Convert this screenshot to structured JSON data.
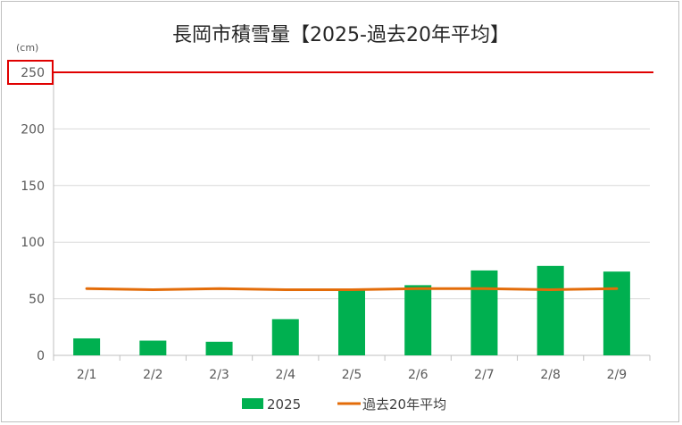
{
  "chart_data": {
    "type": "bar",
    "title": "長岡市積雪量【2025-過去20年平均】",
    "ylabel": "(cm)",
    "xlabel": "",
    "categories": [
      "2/1",
      "2/2",
      "2/3",
      "2/4",
      "2/5",
      "2/6",
      "2/7",
      "2/8",
      "2/9"
    ],
    "ylim": [
      0,
      250
    ],
    "yticks": [
      "0",
      "50",
      "100",
      "150",
      "200",
      "250"
    ],
    "grid": true,
    "legend_position": "bottom",
    "highlighted_tick": "250",
    "series": [
      {
        "name": "2025",
        "type": "bar",
        "color": "#00b050",
        "values": [
          15,
          13,
          12,
          32,
          58,
          62,
          75,
          79,
          74
        ]
      },
      {
        "name": "過去20年平均",
        "type": "line",
        "color": "#e36c09",
        "values": [
          59,
          58,
          59,
          58,
          58,
          59,
          59,
          58,
          59
        ]
      }
    ],
    "reference_line": {
      "value": 250,
      "color": "#e00000"
    }
  }
}
